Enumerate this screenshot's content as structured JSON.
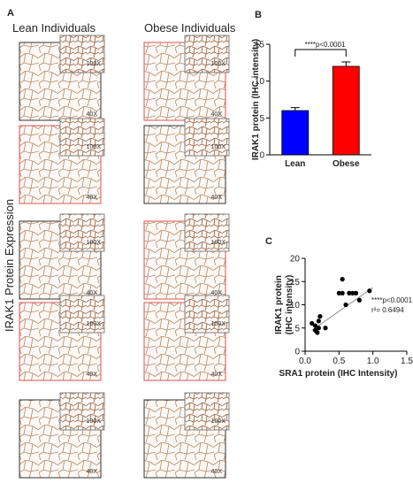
{
  "figure": {
    "panel_labels": [
      "A",
      "B",
      "C"
    ],
    "columns": [
      "Lean Individuals",
      "Obese Individuals"
    ],
    "row_label": "IRAK1 Protein Expression",
    "highlight_color": "#d9534f",
    "panels": [
      [
        {
          "main": "40X",
          "inset": "100X",
          "highlight": false
        },
        {
          "main": "40X",
          "inset": "100X",
          "highlight": true
        }
      ],
      [
        {
          "main": "40X",
          "inset": "100X",
          "highlight": true
        },
        {
          "main": "40X",
          "inset": "100X",
          "highlight": false
        }
      ],
      [
        {
          "main": "40X",
          "inset": "100X",
          "highlight": false
        },
        {
          "main": "40X",
          "inset": "100X",
          "highlight": true
        }
      ],
      [
        {
          "main": "40X",
          "inset": "100X",
          "highlight": true
        },
        {
          "main": "40X",
          "inset": "100X",
          "highlight": true
        }
      ],
      [
        {
          "main": "40X",
          "inset": "100X",
          "highlight": false
        },
        {
          "main": "40X",
          "inset": "100X",
          "highlight": false
        }
      ]
    ]
  },
  "chart_data": [
    {
      "type": "bar",
      "y_label": "IRAK1 protein (IHC intensity)",
      "annotation": "****p<0.0001",
      "categories": [
        "Lean",
        "Obese"
      ],
      "values": [
        6,
        12
      ],
      "errors": [
        0.4,
        0.6
      ],
      "colors": [
        "#0000ff",
        "#ff0000"
      ],
      "ylim": [
        0,
        15
      ],
      "yticks": [
        0,
        5,
        10,
        15
      ]
    },
    {
      "type": "scatter",
      "x_label": "SRA1 protein (IHC Intensity)",
      "y_label": [
        "IRAK1 protein",
        "(IHC intensity)"
      ],
      "annotations": [
        "****p<0.0001",
        "r²= 0.6494"
      ],
      "x": [
        0.1,
        0.15,
        0.15,
        0.18,
        0.2,
        0.22,
        0.2,
        0.3,
        0.5,
        0.55,
        0.6,
        0.65,
        0.7,
        0.75,
        0.8,
        0.95,
        0.55
      ],
      "y": [
        6,
        5.5,
        4.5,
        4,
        6.5,
        7.5,
        5,
        5,
        12.5,
        15.5,
        10,
        12.5,
        12.5,
        12.5,
        11,
        13,
        12.5
      ],
      "color": "#000000",
      "fit_line": {
        "x": [
          0.1,
          1.0
        ],
        "y": [
          4.5,
          13.7
        ]
      },
      "xlim": [
        0,
        1.5
      ],
      "xticks": [
        {
          "value": 0,
          "label": "0.0"
        },
        {
          "value": 0.5,
          "label": "0.5"
        },
        {
          "value": 1,
          "label": "1.0"
        },
        {
          "value": 1.5,
          "label": "1.5"
        }
      ],
      "ylim": [
        0,
        20
      ],
      "yticks": [
        0,
        5,
        10,
        15,
        20
      ]
    }
  ]
}
